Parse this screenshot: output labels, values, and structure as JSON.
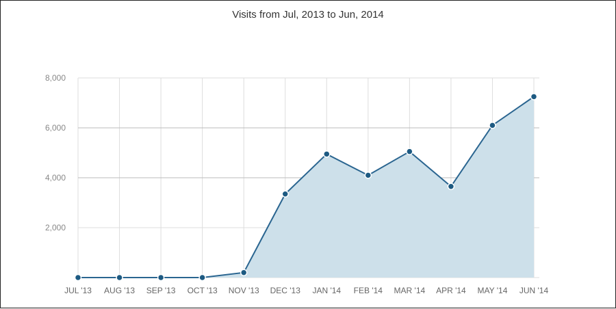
{
  "chart_data": {
    "type": "area",
    "title": "Visits from Jul, 2013 to Jun, 2014",
    "xlabel": "",
    "ylabel": "",
    "categories": [
      "JUL '13",
      "AUG '13",
      "SEP '13",
      "OCT '13",
      "NOV '13",
      "DEC '13",
      "JAN '14",
      "FEB '14",
      "MAR '14",
      "APR '14",
      "MAY '14",
      "JUN '14"
    ],
    "series": [
      {
        "values": [
          0,
          0,
          0,
          0,
          200,
          3350,
          4950,
          4100,
          5050,
          3650,
          6100,
          7250
        ]
      }
    ],
    "yticks": [
      "2,000",
      "4,000",
      "6,000",
      "8,000"
    ],
    "ylim": [
      0,
      8000
    ],
    "grid": true,
    "legend": "none"
  },
  "colors": {
    "line": "#2a6590",
    "fill": "#cde0ea",
    "marker": "#1d5a82",
    "grid_minor": "#dddddd",
    "grid_major": "#bbbbbb"
  }
}
